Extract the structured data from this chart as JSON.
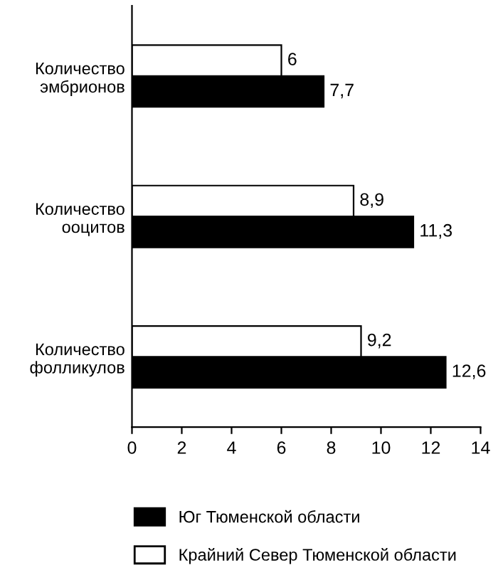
{
  "chart_data": {
    "type": "bar",
    "orientation": "horizontal",
    "categories": [
      "Количество\nэмбрионов",
      "Количество\nооцитов",
      "Количество\nфолликулов"
    ],
    "series": [
      {
        "name": "Юг Тюменской области",
        "color": "#000000",
        "values": [
          7.7,
          11.3,
          12.6
        ],
        "value_labels": [
          "7,7",
          "11,3",
          "12,6"
        ]
      },
      {
        "name": "Крайний Север Тюменской области",
        "color": "#ffffff",
        "values": [
          6,
          8.9,
          9.2
        ],
        "value_labels": [
          "6",
          "8,9",
          "9,2"
        ]
      }
    ],
    "xlim": [
      0,
      14
    ],
    "xticks": [
      0,
      2,
      4,
      6,
      8,
      10,
      12,
      14
    ],
    "grid": false,
    "legend": "bottom"
  }
}
